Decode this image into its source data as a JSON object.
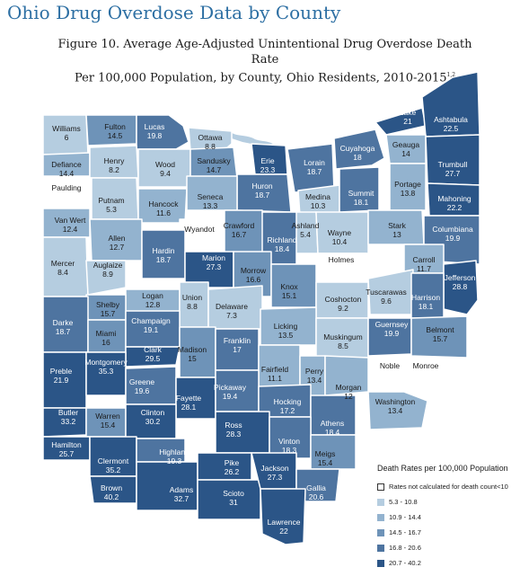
{
  "title": "Ohio Drug Overdose Data by County",
  "subtitle_line1": "Figure 10. Average Age-Adjusted Unintentional Drug Overdose Death Rate",
  "subtitle_line2": "Per 100,000 Population, by County, Ohio Residents, 2010-2015",
  "subtitle_sup": "1,2",
  "legend": {
    "title": "Death Rates per 100,000 Population",
    "items": [
      {
        "label": "Rates not calculated for death count<10",
        "color": "#ffffff"
      },
      {
        "label": "5.3 - 10.8",
        "color": "#b5cde0"
      },
      {
        "label": "10.9 - 14.4",
        "color": "#93b3cf"
      },
      {
        "label": "14.5 - 16.7",
        "color": "#6e93b8"
      },
      {
        "label": "16.8 - 20.6",
        "color": "#4e74a0"
      },
      {
        "label": "20.7 - 40.2",
        "color": "#2b5587"
      }
    ]
  },
  "counties": [
    {
      "name": "Williams",
      "rate": "6"
    },
    {
      "name": "Fulton",
      "rate": "14.5"
    },
    {
      "name": "Lucas",
      "rate": "19.8"
    },
    {
      "name": "Ottawa",
      "rate": "8.8"
    },
    {
      "name": "Erie",
      "rate": "23.3"
    },
    {
      "name": "Lorain",
      "rate": "18.7"
    },
    {
      "name": "Cuyahoga",
      "rate": "18"
    },
    {
      "name": "Lake",
      "rate": "21"
    },
    {
      "name": "Ashtabula",
      "rate": "22.5"
    },
    {
      "name": "Geauga",
      "rate": "14"
    },
    {
      "name": "Trumbull",
      "rate": "27.7"
    },
    {
      "name": "Defiance",
      "rate": "14.4"
    },
    {
      "name": "Henry",
      "rate": "8.2"
    },
    {
      "name": "Wood",
      "rate": "9.4"
    },
    {
      "name": "Sandusky",
      "rate": "14.7"
    },
    {
      "name": "Huron",
      "rate": "18.7"
    },
    {
      "name": "Medina",
      "rate": "10.3"
    },
    {
      "name": "Summit",
      "rate": "18.1"
    },
    {
      "name": "Portage",
      "rate": "13.8"
    },
    {
      "name": "Mahoning",
      "rate": "22.2"
    },
    {
      "name": "Paulding",
      "rate": ""
    },
    {
      "name": "Putnam",
      "rate": "5.3"
    },
    {
      "name": "Hancock",
      "rate": "11.6"
    },
    {
      "name": "Seneca",
      "rate": "13.3"
    },
    {
      "name": "Ashland",
      "rate": "5.4"
    },
    {
      "name": "Wayne",
      "rate": "10.4"
    },
    {
      "name": "Stark",
      "rate": "13"
    },
    {
      "name": "Columbiana",
      "rate": "19.9"
    },
    {
      "name": "Van Wert",
      "rate": "12.4"
    },
    {
      "name": "Allen",
      "rate": "12.7"
    },
    {
      "name": "Wyandot",
      "rate": ""
    },
    {
      "name": "Crawford",
      "rate": "16.7"
    },
    {
      "name": "Richland",
      "rate": "18.4"
    },
    {
      "name": "Holmes",
      "rate": ""
    },
    {
      "name": "Carroll",
      "rate": "11.7"
    },
    {
      "name": "Jefferson",
      "rate": "28.8"
    },
    {
      "name": "Mercer",
      "rate": "8.4"
    },
    {
      "name": "Auglaize",
      "rate": "8.9"
    },
    {
      "name": "Hardin",
      "rate": "18.7"
    },
    {
      "name": "Marion",
      "rate": "27.3"
    },
    {
      "name": "Morrow",
      "rate": "16.6"
    },
    {
      "name": "Knox",
      "rate": "15.1"
    },
    {
      "name": "Tuscarawas",
      "rate": "9.6"
    },
    {
      "name": "Harrison",
      "rate": "18.1"
    },
    {
      "name": "Logan",
      "rate": "12.8"
    },
    {
      "name": "Union",
      "rate": "8.8"
    },
    {
      "name": "Delaware",
      "rate": "7.3"
    },
    {
      "name": "Coshocton",
      "rate": "9.2"
    },
    {
      "name": "Shelby",
      "rate": "15.7"
    },
    {
      "name": "Darke",
      "rate": "18.7"
    },
    {
      "name": "Miami",
      "rate": "16"
    },
    {
      "name": "Champaign",
      "rate": "19.1"
    },
    {
      "name": "Licking",
      "rate": "13.5"
    },
    {
      "name": "Muskingum",
      "rate": "8.5"
    },
    {
      "name": "Guernsey",
      "rate": "19.9"
    },
    {
      "name": "Belmont",
      "rate": "15.7"
    },
    {
      "name": "Clark",
      "rate": "29.5"
    },
    {
      "name": "Madison",
      "rate": "15"
    },
    {
      "name": "Franklin",
      "rate": "17"
    },
    {
      "name": "Preble",
      "rate": "21.9"
    },
    {
      "name": "Montgomery",
      "rate": "35.3"
    },
    {
      "name": "Greene",
      "rate": "19.6"
    },
    {
      "name": "Fairfield",
      "rate": "11.1"
    },
    {
      "name": "Perry",
      "rate": "13.4"
    },
    {
      "name": "Noble",
      "rate": ""
    },
    {
      "name": "Monroe",
      "rate": ""
    },
    {
      "name": "Morgan",
      "rate": "12"
    },
    {
      "name": "Fayette",
      "rate": "28.1"
    },
    {
      "name": "Pickaway",
      "rate": "19.4"
    },
    {
      "name": "Hocking",
      "rate": "17.2"
    },
    {
      "name": "Washington",
      "rate": "13.4"
    },
    {
      "name": "Butler",
      "rate": "33.2"
    },
    {
      "name": "Warren",
      "rate": "15.4"
    },
    {
      "name": "Clinton",
      "rate": "30.2"
    },
    {
      "name": "Ross",
      "rate": "28.3"
    },
    {
      "name": "Athens",
      "rate": "18.4"
    },
    {
      "name": "Vinton",
      "rate": "18.3"
    },
    {
      "name": "Hamilton",
      "rate": "25.7"
    },
    {
      "name": "Clermont",
      "rate": "35.2"
    },
    {
      "name": "Highland",
      "rate": "19.3"
    },
    {
      "name": "Meigs",
      "rate": "15.4"
    },
    {
      "name": "Brown",
      "rate": "40.2"
    },
    {
      "name": "Adams",
      "rate": "32.7"
    },
    {
      "name": "Pike",
      "rate": "26.2"
    },
    {
      "name": "Scioto",
      "rate": "31"
    },
    {
      "name": "Jackson",
      "rate": "27.3"
    },
    {
      "name": "Gallia",
      "rate": "20.6"
    },
    {
      "name": "Lawrence",
      "rate": "22"
    }
  ]
}
